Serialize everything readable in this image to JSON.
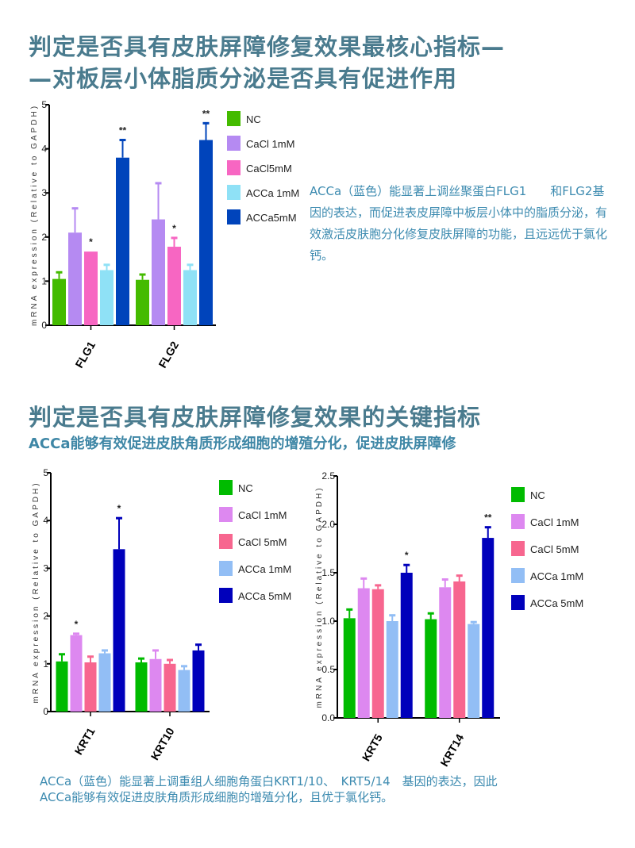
{
  "section1": {
    "title_line1": "判定是否具有皮肤屏障修复效果最核心指标—",
    "title_line2": "—对板层小体脂质分泌是否具有促进作用",
    "description": "ACCa（蓝色）能显著上调丝聚蛋白FLG1　　和FLG2基因的表达，而促进表皮屏障中板层小体中的脂质分泌，有效激活皮肤胞分化修复皮肤屏障的功能，且远远优于氯化钙。"
  },
  "section2": {
    "title": "判定是否具有皮肤屏障修复效果的关键指标",
    "subtitle": "ACCa能够有效促进皮肤角质形成细胞的增殖分化，促进皮肤屏障修",
    "description_line1": "ACCa（蓝色）能显著上调重组人细胞角蛋白KRT1/10、　KRT5/14　基因的表达，因此",
    "description_line2": "ACCa能够有效促进皮肤角质形成细胞的增殖分化，且优于氯化钙。"
  },
  "chart_data": [
    {
      "type": "bar",
      "title": "",
      "ylabel": "mRNA expression (Relative to GAPDH)",
      "xlabel": "",
      "ylim": [
        0,
        5
      ],
      "yticks": [
        "0",
        "1",
        "2",
        "3",
        "4",
        "5"
      ],
      "categories": [
        "FLG1",
        "FLG2"
      ],
      "legend_position": "right",
      "series": [
        {
          "name": "NC",
          "color": "#44bb00",
          "values": [
            1.05,
            1.03
          ],
          "errors": [
            0.15,
            0.12
          ],
          "sig": [
            "",
            ""
          ]
        },
        {
          "name": "CaCl 1mM",
          "color": "#b58af2",
          "values": [
            2.1,
            2.4
          ],
          "errors": [
            0.55,
            0.82
          ],
          "sig": [
            "",
            ""
          ]
        },
        {
          "name": "CaCl5mM",
          "color": "#f766c2",
          "values": [
            1.67,
            1.78
          ],
          "errors": [
            0.0,
            0.2
          ],
          "sig": [
            "*",
            "*"
          ]
        },
        {
          "name": "ACCa 1mM",
          "color": "#8fe1f6",
          "values": [
            1.25,
            1.25
          ],
          "errors": [
            0.12,
            0.12
          ],
          "sig": [
            "",
            ""
          ]
        },
        {
          "name": "ACCa5mM",
          "color": "#0044bb",
          "values": [
            3.8,
            4.2
          ],
          "errors": [
            0.4,
            0.38
          ],
          "sig": [
            "**",
            "**"
          ]
        }
      ]
    },
    {
      "type": "bar",
      "title": "",
      "ylabel": "mRNA expression (Relative to GAPDH)",
      "xlabel": "",
      "ylim": [
        0,
        5
      ],
      "yticks": [
        "0",
        "1",
        "2",
        "3",
        "4",
        "5"
      ],
      "categories": [
        "KRT1",
        "KRT10"
      ],
      "legend_position": "right",
      "series": [
        {
          "name": "NC",
          "color": "#00bb00",
          "values": [
            1.05,
            1.03
          ],
          "errors": [
            0.15,
            0.08
          ],
          "sig": [
            "",
            ""
          ]
        },
        {
          "name": "CaCl 1mM",
          "color": "#dd88f0",
          "values": [
            1.6,
            1.1
          ],
          "errors": [
            0.03,
            0.18
          ],
          "sig": [
            "*",
            ""
          ]
        },
        {
          "name": "CaCl 5mM",
          "color": "#f7668f",
          "values": [
            1.03,
            1.0
          ],
          "errors": [
            0.12,
            0.08
          ],
          "sig": [
            "",
            ""
          ]
        },
        {
          "name": "ACCa 1mM",
          "color": "#92bef5",
          "values": [
            1.22,
            0.87
          ],
          "errors": [
            0.06,
            0.08
          ],
          "sig": [
            "",
            ""
          ]
        },
        {
          "name": "ACCa 5mM",
          "color": "#0000bb",
          "values": [
            3.4,
            1.28
          ],
          "errors": [
            0.65,
            0.12
          ],
          "sig": [
            "*",
            ""
          ]
        }
      ]
    },
    {
      "type": "bar",
      "title": "",
      "ylabel": "mRNA expression (Relative to GAPDH)",
      "xlabel": "",
      "ylim": [
        0,
        2.5
      ],
      "yticks": [
        "0.0",
        "0.5",
        "1.0",
        "1.5",
        "2.0",
        "2.5"
      ],
      "categories": [
        "KRT5",
        "KRT14"
      ],
      "legend_position": "right",
      "series": [
        {
          "name": "NC",
          "color": "#00bb00",
          "values": [
            1.03,
            1.02
          ],
          "errors": [
            0.09,
            0.06
          ],
          "sig": [
            "",
            ""
          ]
        },
        {
          "name": "CaCl 1mM",
          "color": "#dd88f0",
          "values": [
            1.34,
            1.35
          ],
          "errors": [
            0.1,
            0.08
          ],
          "sig": [
            "",
            ""
          ]
        },
        {
          "name": "CaCl 5mM",
          "color": "#f7668f",
          "values": [
            1.33,
            1.41
          ],
          "errors": [
            0.04,
            0.06
          ],
          "sig": [
            "",
            ""
          ]
        },
        {
          "name": "ACCa 1mM",
          "color": "#92bef5",
          "values": [
            1.0,
            0.97
          ],
          "errors": [
            0.06,
            0.02
          ],
          "sig": [
            "",
            ""
          ]
        },
        {
          "name": "ACCa 5mM",
          "color": "#0000bb",
          "values": [
            1.5,
            1.86
          ],
          "errors": [
            0.08,
            0.11
          ],
          "sig": [
            "*",
            "**"
          ]
        }
      ]
    }
  ]
}
